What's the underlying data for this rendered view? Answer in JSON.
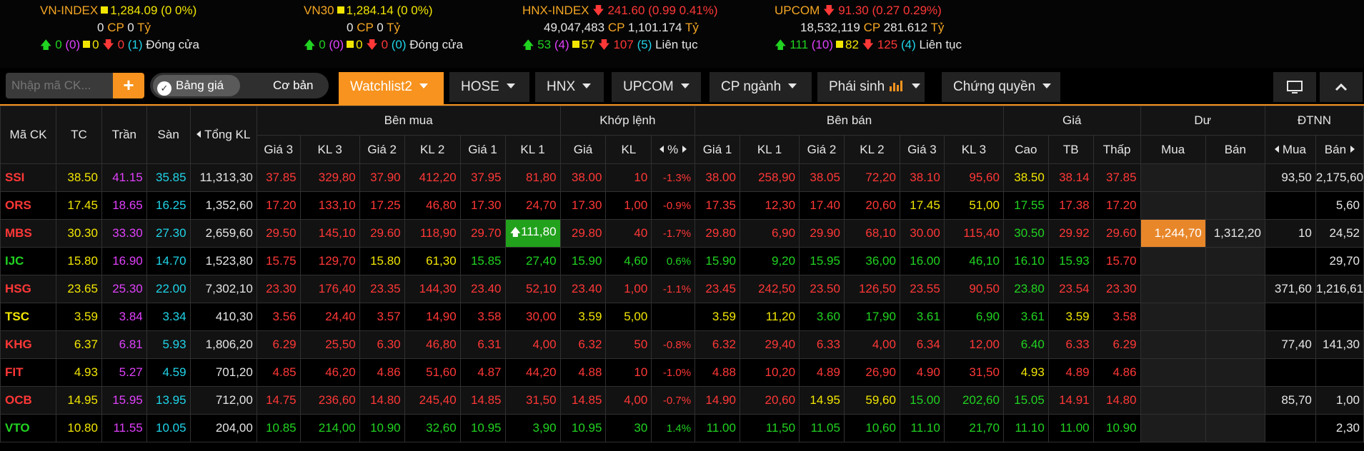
{
  "indices": [
    {
      "name": "VN-INDEX",
      "trend": "ref",
      "value": "1,284.09",
      "change": "(0 0%)",
      "vol": "0",
      "vol_unit": "CP",
      "val": "0",
      "val_unit": "Tỷ",
      "up": "0",
      "ceil": "(0)",
      "ref": "0",
      "down": "0",
      "floor": "(1)",
      "status": "Đóng cửa"
    },
    {
      "name": "VN30",
      "trend": "ref",
      "value": "1,284.14",
      "change": "(0 0%)",
      "vol": "0",
      "vol_unit": "CP",
      "val": "0",
      "val_unit": "Tỷ",
      "up": "0",
      "ceil": "(0)",
      "ref": "0",
      "down": "0",
      "floor": "(0)",
      "status": "Đóng cửa"
    },
    {
      "name": "HNX-INDEX",
      "trend": "down",
      "value": "241.60",
      "change": "(0.99 0.41%)",
      "vol": "49,047,483",
      "vol_unit": "CP",
      "val": "1,101.174",
      "val_unit": "Tỷ",
      "up": "53",
      "ceil": "(4)",
      "ref": "57",
      "down": "107",
      "floor": "(5)",
      "status": "Liên tục"
    },
    {
      "name": "UPCOM",
      "trend": "down",
      "value": "91.30",
      "change": "(0.27 0.29%)",
      "vol": "18,532,119",
      "vol_unit": "CP",
      "val": "281.612",
      "val_unit": "Tỷ",
      "up": "111",
      "ceil": "(10)",
      "ref": "82",
      "down": "125",
      "floor": "(4)",
      "status": "Liên tục"
    }
  ],
  "toolbar": {
    "search_placeholder": "Nhập mã CK...",
    "plus": "+",
    "view_active": "Bảng giá",
    "view_other": "Cơ bản",
    "tabs": [
      "Watchlist2",
      "HOSE",
      "HNX",
      "UPCOM",
      "CP ngành",
      "Phái sinh",
      "Chứng quyền"
    ]
  },
  "headers": {
    "symbol": "Mã CK",
    "tc": "TC",
    "tran": "Trần",
    "san": "Sàn",
    "total": "Tổng KL",
    "ben_mua": "Bên mua",
    "khop": "Khớp lệnh",
    "ben_ban": "Bên bán",
    "gia": "Giá",
    "du": "Dư",
    "dtnn": "ĐTNN",
    "gia3": "Giá 3",
    "kl3": "KL 3",
    "gia2": "Giá 2",
    "kl2": "KL 2",
    "gia1": "Giá 1",
    "kl1": "KL 1",
    "k_gia": "Giá",
    "k_kl": "KL",
    "k_pct": "%",
    "cao": "Cao",
    "tb": "TB",
    "thap": "Thấp",
    "du_mua": "Mua",
    "du_ban": "Bán",
    "nn_mua": "Mua",
    "nn_ban": "Bán"
  },
  "colors": {
    "ceil": "#e040fb",
    "floor": "#1fd4e8",
    "ref": "#f2e600",
    "up": "#21d321",
    "down": "#ff3737",
    "accent": "#f7931e"
  },
  "rows": [
    {
      "sym": "SSI",
      "s": "d",
      "tc": "38.50",
      "tran": "41.15",
      "san": "35.85",
      "tkl": "11,313,30",
      "b": [
        [
          "37.85",
          "d"
        ],
        [
          "329,80",
          "d"
        ],
        [
          "37.90",
          "d"
        ],
        [
          "412,20",
          "d"
        ],
        [
          "37.95",
          "d"
        ],
        [
          "81,80",
          "d"
        ]
      ],
      "k": [
        [
          "38.00",
          "d"
        ],
        [
          "10",
          "d"
        ],
        [
          "-1.3%",
          "d"
        ]
      ],
      "a": [
        [
          "38.00",
          "d"
        ],
        [
          "258,90",
          "d"
        ],
        [
          "38.05",
          "d"
        ],
        [
          "72,20",
          "d"
        ],
        [
          "38.10",
          "d"
        ],
        [
          "95,60",
          "d"
        ]
      ],
      "p": [
        [
          "38.50",
          "r"
        ],
        [
          "38.14",
          "d"
        ],
        [
          "37.85",
          "d"
        ]
      ],
      "du": [
        "",
        ""
      ],
      "nn": [
        "93,50",
        "2,175,60"
      ]
    },
    {
      "sym": "ORS",
      "s": "d",
      "tc": "17.45",
      "tran": "18.65",
      "san": "16.25",
      "tkl": "1,352,60",
      "b": [
        [
          "17.20",
          "d"
        ],
        [
          "133,10",
          "d"
        ],
        [
          "17.25",
          "d"
        ],
        [
          "46,80",
          "d"
        ],
        [
          "17.30",
          "d"
        ],
        [
          "24,70",
          "d"
        ]
      ],
      "k": [
        [
          "17.30",
          "d"
        ],
        [
          "1,00",
          "d"
        ],
        [
          "-0.9%",
          "d"
        ]
      ],
      "a": [
        [
          "17.35",
          "d"
        ],
        [
          "12,30",
          "d"
        ],
        [
          "17.40",
          "d"
        ],
        [
          "20,60",
          "d"
        ],
        [
          "17.45",
          "r"
        ],
        [
          "51,00",
          "r"
        ]
      ],
      "p": [
        [
          "17.55",
          "u"
        ],
        [
          "17.38",
          "d"
        ],
        [
          "17.20",
          "d"
        ]
      ],
      "du": [
        "",
        ""
      ],
      "nn": [
        "",
        "5,60"
      ]
    },
    {
      "sym": "MBS",
      "s": "d",
      "tc": "30.30",
      "tran": "33.30",
      "san": "27.30",
      "tkl": "2,659,60",
      "b": [
        [
          "29.50",
          "d"
        ],
        [
          "145,10",
          "d"
        ],
        [
          "29.60",
          "d"
        ],
        [
          "118,90",
          "d"
        ],
        [
          "29.70",
          "d"
        ],
        [
          "111,80",
          "hg"
        ]
      ],
      "k": [
        [
          "29.80",
          "d"
        ],
        [
          "40",
          "d"
        ],
        [
          "-1.7%",
          "d"
        ]
      ],
      "a": [
        [
          "29.80",
          "d"
        ],
        [
          "6,90",
          "d"
        ],
        [
          "29.90",
          "d"
        ],
        [
          "68,10",
          "d"
        ],
        [
          "30.00",
          "d"
        ],
        [
          "115,40",
          "d"
        ]
      ],
      "p": [
        [
          "30.50",
          "u"
        ],
        [
          "29.92",
          "d"
        ],
        [
          "29.60",
          "d"
        ]
      ],
      "du": [
        "1,244,70",
        "1,312,20"
      ],
      "nn": [
        "10",
        "24,52"
      ]
    },
    {
      "sym": "IJC",
      "s": "u",
      "tc": "15.80",
      "tran": "16.90",
      "san": "14.70",
      "tkl": "1,523,80",
      "b": [
        [
          "15.75",
          "d"
        ],
        [
          "129,70",
          "d"
        ],
        [
          "15.80",
          "r"
        ],
        [
          "61,30",
          "r"
        ],
        [
          "15.85",
          "u"
        ],
        [
          "27,40",
          "u"
        ]
      ],
      "k": [
        [
          "15.90",
          "u"
        ],
        [
          "4,60",
          "u"
        ],
        [
          "0.6%",
          "u"
        ]
      ],
      "a": [
        [
          "15.90",
          "u"
        ],
        [
          "9,20",
          "u"
        ],
        [
          "15.95",
          "u"
        ],
        [
          "36,00",
          "u"
        ],
        [
          "16.00",
          "u"
        ],
        [
          "46,10",
          "u"
        ]
      ],
      "p": [
        [
          "16.10",
          "u"
        ],
        [
          "15.93",
          "u"
        ],
        [
          "15.70",
          "d"
        ]
      ],
      "du": [
        "",
        ""
      ],
      "nn": [
        "",
        "29,70"
      ]
    },
    {
      "sym": "HSG",
      "s": "d",
      "tc": "23.65",
      "tran": "25.30",
      "san": "22.00",
      "tkl": "7,302,10",
      "b": [
        [
          "23.30",
          "d"
        ],
        [
          "176,40",
          "d"
        ],
        [
          "23.35",
          "d"
        ],
        [
          "144,30",
          "d"
        ],
        [
          "23.40",
          "d"
        ],
        [
          "52,10",
          "d"
        ]
      ],
      "k": [
        [
          "23.40",
          "d"
        ],
        [
          "1,00",
          "d"
        ],
        [
          "-1.1%",
          "d"
        ]
      ],
      "a": [
        [
          "23.45",
          "d"
        ],
        [
          "242,50",
          "d"
        ],
        [
          "23.50",
          "d"
        ],
        [
          "126,50",
          "d"
        ],
        [
          "23.55",
          "d"
        ],
        [
          "90,50",
          "d"
        ]
      ],
      "p": [
        [
          "23.80",
          "u"
        ],
        [
          "23.54",
          "d"
        ],
        [
          "23.30",
          "d"
        ]
      ],
      "du": [
        "",
        ""
      ],
      "nn": [
        "371,60",
        "1,216,61"
      ]
    },
    {
      "sym": "TSC",
      "s": "r",
      "tc": "3.59",
      "tran": "3.84",
      "san": "3.34",
      "tkl": "410,30",
      "b": [
        [
          "3.56",
          "d"
        ],
        [
          "24,40",
          "d"
        ],
        [
          "3.57",
          "d"
        ],
        [
          "14,90",
          "d"
        ],
        [
          "3.58",
          "d"
        ],
        [
          "30,00",
          "d"
        ]
      ],
      "k": [
        [
          "3.59",
          "r"
        ],
        [
          "5,00",
          "r"
        ],
        [
          "",
          ""
        ]
      ],
      "a": [
        [
          "3.59",
          "r"
        ],
        [
          "11,20",
          "r"
        ],
        [
          "3.60",
          "u"
        ],
        [
          "17,90",
          "u"
        ],
        [
          "3.61",
          "u"
        ],
        [
          "6,90",
          "u"
        ]
      ],
      "p": [
        [
          "3.61",
          "u"
        ],
        [
          "3.59",
          "r"
        ],
        [
          "3.58",
          "d"
        ]
      ],
      "du": [
        "",
        ""
      ],
      "nn": [
        "",
        ""
      ]
    },
    {
      "sym": "KHG",
      "s": "d",
      "tc": "6.37",
      "tran": "6.81",
      "san": "5.93",
      "tkl": "1,806,20",
      "b": [
        [
          "6.29",
          "d"
        ],
        [
          "25,50",
          "d"
        ],
        [
          "6.30",
          "d"
        ],
        [
          "46,80",
          "d"
        ],
        [
          "6.31",
          "d"
        ],
        [
          "4,00",
          "d"
        ]
      ],
      "k": [
        [
          "6.32",
          "d"
        ],
        [
          "50",
          "d"
        ],
        [
          "-0.8%",
          "d"
        ]
      ],
      "a": [
        [
          "6.32",
          "d"
        ],
        [
          "29,40",
          "d"
        ],
        [
          "6.33",
          "d"
        ],
        [
          "4,00",
          "d"
        ],
        [
          "6.34",
          "d"
        ],
        [
          "12,00",
          "d"
        ]
      ],
      "p": [
        [
          "6.40",
          "u"
        ],
        [
          "6.33",
          "d"
        ],
        [
          "6.29",
          "d"
        ]
      ],
      "du": [
        "",
        ""
      ],
      "nn": [
        "77,40",
        "141,30"
      ]
    },
    {
      "sym": "FIT",
      "s": "d",
      "tc": "4.93",
      "tran": "5.27",
      "san": "4.59",
      "tkl": "701,20",
      "b": [
        [
          "4.85",
          "d"
        ],
        [
          "46,20",
          "d"
        ],
        [
          "4.86",
          "d"
        ],
        [
          "51,60",
          "d"
        ],
        [
          "4.87",
          "d"
        ],
        [
          "44,20",
          "d"
        ]
      ],
      "k": [
        [
          "4.88",
          "d"
        ],
        [
          "10",
          "d"
        ],
        [
          "-1.0%",
          "d"
        ]
      ],
      "a": [
        [
          "4.88",
          "d"
        ],
        [
          "10,20",
          "d"
        ],
        [
          "4.89",
          "d"
        ],
        [
          "26,90",
          "d"
        ],
        [
          "4.90",
          "d"
        ],
        [
          "31,50",
          "d"
        ]
      ],
      "p": [
        [
          "4.93",
          "r"
        ],
        [
          "4.89",
          "d"
        ],
        [
          "4.86",
          "d"
        ]
      ],
      "du": [
        "",
        ""
      ],
      "nn": [
        "",
        ""
      ]
    },
    {
      "sym": "OCB",
      "s": "d",
      "tc": "14.95",
      "tran": "15.95",
      "san": "13.95",
      "tkl": "712,00",
      "b": [
        [
          "14.75",
          "d"
        ],
        [
          "236,60",
          "d"
        ],
        [
          "14.80",
          "d"
        ],
        [
          "245,40",
          "d"
        ],
        [
          "14.85",
          "d"
        ],
        [
          "31,50",
          "d"
        ]
      ],
      "k": [
        [
          "14.85",
          "d"
        ],
        [
          "4,00",
          "d"
        ],
        [
          "-0.7%",
          "d"
        ]
      ],
      "a": [
        [
          "14.90",
          "d"
        ],
        [
          "20,60",
          "d"
        ],
        [
          "14.95",
          "r"
        ],
        [
          "59,60",
          "r"
        ],
        [
          "15.00",
          "u"
        ],
        [
          "202,60",
          "u"
        ]
      ],
      "p": [
        [
          "15.05",
          "u"
        ],
        [
          "14.91",
          "d"
        ],
        [
          "14.80",
          "d"
        ]
      ],
      "du": [
        "",
        ""
      ],
      "nn": [
        "85,70",
        "1,00"
      ]
    },
    {
      "sym": "VTO",
      "s": "u",
      "tc": "10.80",
      "tran": "11.55",
      "san": "10.05",
      "tkl": "204,00",
      "b": [
        [
          "10.85",
          "u"
        ],
        [
          "214,00",
          "u"
        ],
        [
          "10.90",
          "u"
        ],
        [
          "32,60",
          "u"
        ],
        [
          "10.95",
          "u"
        ],
        [
          "3,90",
          "u"
        ]
      ],
      "k": [
        [
          "10.95",
          "u"
        ],
        [
          "30",
          "u"
        ],
        [
          "1.4%",
          "u"
        ]
      ],
      "a": [
        [
          "11.00",
          "u"
        ],
        [
          "11,50",
          "u"
        ],
        [
          "11.05",
          "u"
        ],
        [
          "10,60",
          "u"
        ],
        [
          "11.10",
          "u"
        ],
        [
          "21,70",
          "u"
        ]
      ],
      "p": [
        [
          "11.10",
          "u"
        ],
        [
          "11.00",
          "u"
        ],
        [
          "10.90",
          "u"
        ]
      ],
      "du": [
        "",
        ""
      ],
      "nn": [
        "",
        "2,30"
      ]
    }
  ]
}
